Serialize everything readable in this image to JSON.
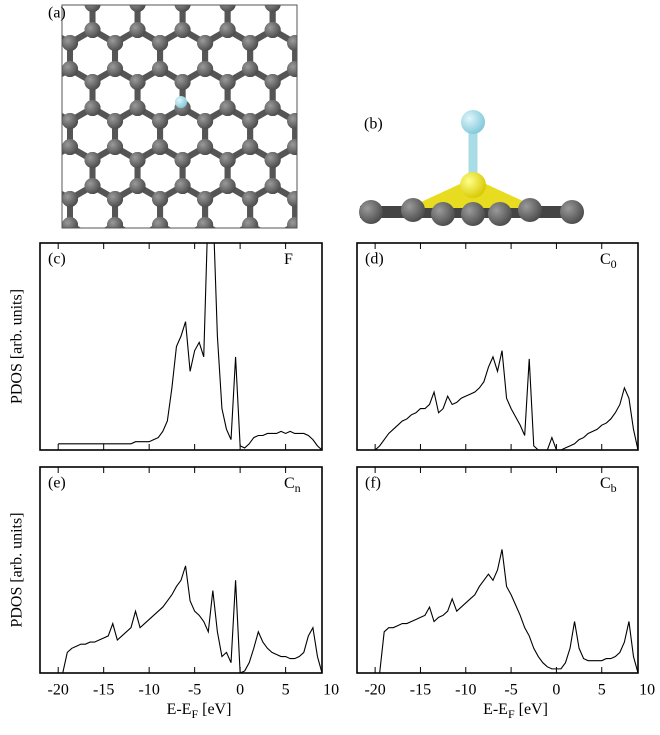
{
  "panels": {
    "a": "(a)",
    "b": "(b)"
  },
  "chart_data": [
    {
      "type": "line",
      "panel_label": "(c)",
      "annotation": "F",
      "annotation_sub": "",
      "color": "#000000",
      "ylabel": "PDOS [arb. units]",
      "xlim": [
        -22,
        9
      ],
      "ylim": [
        0,
        1
      ],
      "xticks": [
        -20,
        -15,
        -10,
        -5,
        0,
        5
      ],
      "show_xtick_labels": false,
      "x": [
        -20,
        -19.5,
        -19,
        -18.5,
        -18,
        -17.5,
        -17,
        -16.5,
        -16,
        -15.5,
        -15,
        -14.5,
        -14,
        -13.5,
        -13,
        -12.5,
        -12,
        -11.5,
        -11,
        -10.5,
        -10,
        -9.5,
        -9,
        -8.5,
        -8,
        -7.5,
        -7,
        -6.5,
        -6,
        -5.5,
        -5,
        -4.5,
        -4,
        -3.5,
        -3,
        -2.5,
        -2,
        -1.5,
        -1,
        -0.5,
        0,
        0.5,
        1,
        1.5,
        2,
        2.5,
        3,
        3.5,
        4,
        4.5,
        5,
        5.5,
        6,
        6.5,
        7,
        7.5,
        8,
        8.5,
        9
      ],
      "values": [
        0.03,
        0.03,
        0.03,
        0.03,
        0.03,
        0.03,
        0.03,
        0.03,
        0.03,
        0.03,
        0.03,
        0.03,
        0.03,
        0.03,
        0.03,
        0.03,
        0.03,
        0.04,
        0.04,
        0.04,
        0.04,
        0.05,
        0.06,
        0.09,
        0.14,
        0.3,
        0.5,
        0.55,
        0.62,
        0.38,
        0.48,
        0.52,
        0.45,
        1.2,
        1.2,
        0.55,
        0.2,
        0.1,
        0.05,
        0.45,
        0.02,
        0.01,
        0.03,
        0.06,
        0.07,
        0.07,
        0.08,
        0.08,
        0.08,
        0.09,
        0.08,
        0.09,
        0.08,
        0.08,
        0.08,
        0.07,
        0.05,
        0.02,
        0
      ]
    },
    {
      "type": "line",
      "panel_label": "(d)",
      "annotation": "C",
      "annotation_sub": "0",
      "color": "#000000",
      "xlim": [
        -22,
        9
      ],
      "ylim": [
        0,
        1
      ],
      "xticks": [
        -20,
        -15,
        -10,
        -5,
        0,
        5
      ],
      "show_xtick_labels": false,
      "x": [
        -20,
        -19.5,
        -19,
        -18.5,
        -18,
        -17.5,
        -17,
        -16.5,
        -16,
        -15.5,
        -15,
        -14.5,
        -14,
        -13.5,
        -13,
        -12.5,
        -12,
        -11.5,
        -11,
        -10.5,
        -10,
        -9.5,
        -9,
        -8.5,
        -8,
        -7.5,
        -7,
        -6.5,
        -6,
        -5.5,
        -5,
        -4.5,
        -4,
        -3.5,
        -3,
        -2.5,
        -2,
        -1.5,
        -1,
        -0.5,
        0,
        0.5,
        1,
        1.5,
        2,
        2.5,
        3,
        3.5,
        4,
        4.5,
        5,
        5.5,
        6,
        6.5,
        7,
        7.5,
        8,
        8.5,
        9
      ],
      "values": [
        0,
        0.02,
        0.05,
        0.08,
        0.1,
        0.12,
        0.14,
        0.15,
        0.17,
        0.18,
        0.2,
        0.2,
        0.22,
        0.28,
        0.18,
        0.2,
        0.26,
        0.22,
        0.23,
        0.25,
        0.26,
        0.27,
        0.28,
        0.3,
        0.33,
        0.4,
        0.45,
        0.38,
        0.48,
        0.25,
        0.2,
        0.16,
        0.12,
        0.07,
        0.44,
        0.02,
        0,
        0,
        0,
        0.06,
        0,
        0,
        0.01,
        0.02,
        0.03,
        0.05,
        0.06,
        0.08,
        0.09,
        0.1,
        0.12,
        0.13,
        0.15,
        0.18,
        0.22,
        0.3,
        0.25,
        0.1,
        0
      ]
    },
    {
      "type": "line",
      "panel_label": "(e)",
      "annotation": "C",
      "annotation_sub": "n",
      "color": "#000000",
      "ylabel": "PDOS [arb. units]",
      "xlabel": "E-E",
      "xlabel_sub": "F",
      "xlabel_tail": " [eV]",
      "xlim": [
        -22,
        9
      ],
      "ylim": [
        0,
        1
      ],
      "xticks": [
        -20,
        -15,
        -10,
        -5,
        0,
        5,
        10
      ],
      "show_xtick_labels": true,
      "x": [
        -20,
        -19.5,
        -19,
        -18.5,
        -18,
        -17.5,
        -17,
        -16.5,
        -16,
        -15.5,
        -15,
        -14.5,
        -14,
        -13.5,
        -13,
        -12.5,
        -12,
        -11.5,
        -11,
        -10.5,
        -10,
        -9.5,
        -9,
        -8.5,
        -8,
        -7.5,
        -7,
        -6.5,
        -6,
        -5.5,
        -5,
        -4.5,
        -4,
        -3.5,
        -3,
        -2.5,
        -2,
        -1.5,
        -1,
        -0.5,
        0,
        0.5,
        1,
        1.5,
        2,
        2.5,
        3,
        3.5,
        4,
        4.5,
        5,
        5.5,
        6,
        6.5,
        7,
        7.5,
        8,
        8.5,
        9
      ],
      "values": [
        0,
        0,
        0.1,
        0.12,
        0.13,
        0.14,
        0.14,
        0.15,
        0.15,
        0.16,
        0.17,
        0.18,
        0.24,
        0.16,
        0.18,
        0.2,
        0.22,
        0.3,
        0.22,
        0.24,
        0.26,
        0.28,
        0.3,
        0.32,
        0.35,
        0.38,
        0.42,
        0.45,
        0.52,
        0.35,
        0.3,
        0.28,
        0.25,
        0.2,
        0.4,
        0.2,
        0.08,
        0.1,
        0.05,
        0.45,
        0,
        0.01,
        0.05,
        0.12,
        0.2,
        0.15,
        0.12,
        0.1,
        0.09,
        0.08,
        0.08,
        0.07,
        0.07,
        0.08,
        0.1,
        0.18,
        0.22,
        0.08,
        0
      ]
    },
    {
      "type": "line",
      "panel_label": "(f)",
      "annotation": "C",
      "annotation_sub": "b",
      "color": "#000000",
      "xlabel": "E-E",
      "xlabel_sub": "F",
      "xlabel_tail": " [eV]",
      "xlim": [
        -22,
        9
      ],
      "ylim": [
        0,
        1
      ],
      "xticks": [
        -20,
        -15,
        -10,
        -5,
        0,
        5,
        10
      ],
      "show_xtick_labels": true,
      "x": [
        -20,
        -19.5,
        -19,
        -18.5,
        -18,
        -17.5,
        -17,
        -16.5,
        -16,
        -15.5,
        -15,
        -14.5,
        -14,
        -13.5,
        -13,
        -12.5,
        -12,
        -11.5,
        -11,
        -10.5,
        -10,
        -9.5,
        -9,
        -8.5,
        -8,
        -7.5,
        -7,
        -6.5,
        -6,
        -5.5,
        -5,
        -4.5,
        -4,
        -3.5,
        -3,
        -2.5,
        -2,
        -1.5,
        -1,
        -0.5,
        0,
        0.5,
        1,
        1.5,
        2,
        2.5,
        3,
        3.5,
        4,
        4.5,
        5,
        5.5,
        6,
        6.5,
        7,
        7.5,
        8,
        8.5,
        9
      ],
      "values": [
        0,
        0,
        0.2,
        0.22,
        0.22,
        0.23,
        0.24,
        0.24,
        0.25,
        0.26,
        0.27,
        0.28,
        0.32,
        0.25,
        0.27,
        0.28,
        0.3,
        0.36,
        0.3,
        0.32,
        0.34,
        0.36,
        0.38,
        0.42,
        0.45,
        0.48,
        0.45,
        0.5,
        0.6,
        0.42,
        0.38,
        0.33,
        0.28,
        0.22,
        0.18,
        0.12,
        0.08,
        0.05,
        0.03,
        0.02,
        0.02,
        0.02,
        0.05,
        0.12,
        0.25,
        0.12,
        0.07,
        0.06,
        0.06,
        0.06,
        0.06,
        0.07,
        0.07,
        0.08,
        0.1,
        0.15,
        0.25,
        0.08,
        0
      ]
    }
  ]
}
